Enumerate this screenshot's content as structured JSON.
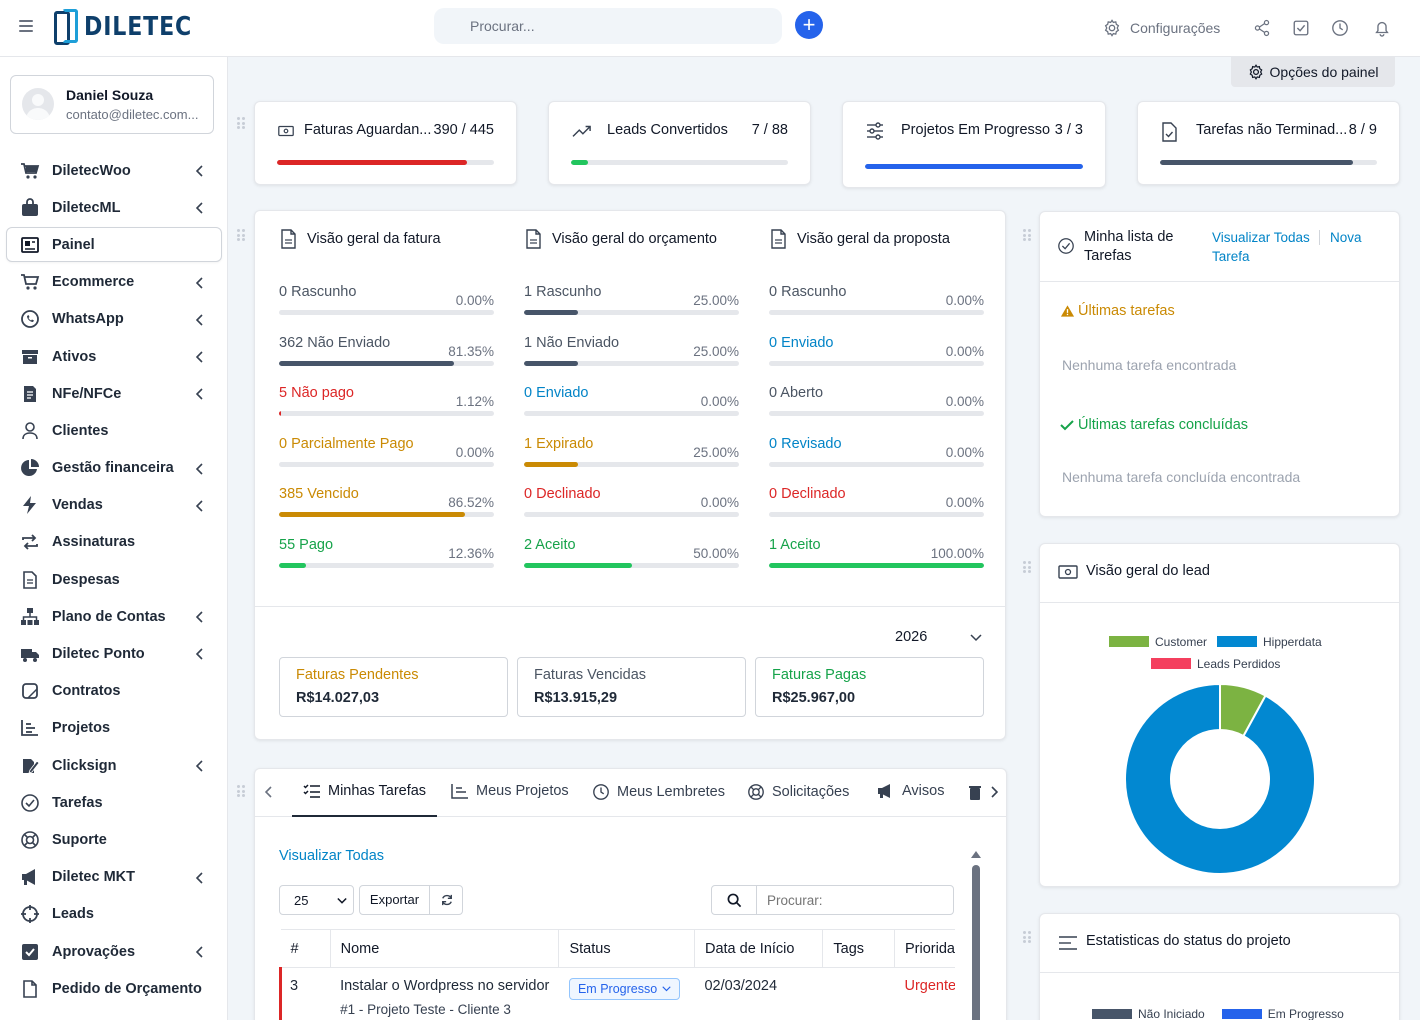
{
  "header": {
    "search_placeholder": "Procurar...",
    "settings_label": "Configurações",
    "logo_text": "DILETEC"
  },
  "profile": {
    "name": "Daniel Souza",
    "email": "contato@diletec.com..."
  },
  "sidebar": {
    "items": [
      {
        "label": "DiletecWoo",
        "icon": "cart-icon",
        "chevron": true
      },
      {
        "label": "DiletecML",
        "icon": "bag-icon",
        "chevron": true
      },
      {
        "label": "Painel",
        "icon": "dashboard-icon",
        "chevron": false,
        "active": true
      },
      {
        "label": "Ecommerce",
        "icon": "cart-plus-icon",
        "chevron": true
      },
      {
        "label": "WhatsApp",
        "icon": "whatsapp-icon",
        "chevron": true
      },
      {
        "label": "Ativos",
        "icon": "archive-icon",
        "chevron": true
      },
      {
        "label": "NFe/NFCe",
        "icon": "invoice-icon",
        "chevron": true
      },
      {
        "label": "Clientes",
        "icon": "user-icon",
        "chevron": false
      },
      {
        "label": "Gestão financeira",
        "icon": "pie-icon",
        "chevron": true
      },
      {
        "label": "Vendas",
        "icon": "bolt-icon",
        "chevron": true
      },
      {
        "label": "Assinaturas",
        "icon": "repeat-icon",
        "chevron": false
      },
      {
        "label": "Despesas",
        "icon": "file-icon",
        "chevron": false
      },
      {
        "label": "Plano de Contas",
        "icon": "sitemap-icon",
        "chevron": true
      },
      {
        "label": "Diletec Ponto",
        "icon": "clock-truck-icon",
        "chevron": true
      },
      {
        "label": "Contratos",
        "icon": "contract-icon",
        "chevron": false
      },
      {
        "label": "Projetos",
        "icon": "chart-bar-icon",
        "chevron": false
      },
      {
        "label": "Clicksign",
        "icon": "signature-icon",
        "chevron": true
      },
      {
        "label": "Tarefas",
        "icon": "check-circle-icon",
        "chevron": false
      },
      {
        "label": "Suporte",
        "icon": "lifebuoy-icon",
        "chevron": false
      },
      {
        "label": "Diletec MKT",
        "icon": "megaphone-icon",
        "chevron": true
      },
      {
        "label": "Leads",
        "icon": "crosshair-icon",
        "chevron": false
      },
      {
        "label": "Aprovações",
        "icon": "checkbox-icon",
        "chevron": true
      },
      {
        "label": "Pedido de Orçamento",
        "icon": "document-icon",
        "chevron": false
      }
    ]
  },
  "panel_options": "Opções do painel",
  "stats": [
    {
      "title": "Faturas Aguardan...",
      "value": "390 / 445",
      "progress": 0.876,
      "color": "#dc2626"
    },
    {
      "title": "Leads Convertidos",
      "value": "7 / 88",
      "progress": 0.08,
      "color": "#22c55e"
    },
    {
      "title": "Projetos Em Progresso",
      "value": "3 / 3",
      "progress": 1.0,
      "color": "#2563eb"
    },
    {
      "title": "Tarefas não Terminad...",
      "value": "8 / 9",
      "progress": 0.889,
      "color": "#475569"
    }
  ],
  "overview": {
    "invoice": {
      "title": "Visão geral da fatura",
      "rows": [
        {
          "label": "0 Rascunho",
          "pct": "0.00%",
          "value": 0,
          "color": "#4b5563",
          "text_color": "#4b5563"
        },
        {
          "label": "362 Não Enviado",
          "pct": "81.35%",
          "value": 0.8135,
          "color": "#475569",
          "text_color": "#4b5563"
        },
        {
          "label": "5 Não pago",
          "pct": "1.12%",
          "value": 0.0112,
          "color": "#dc2626",
          "text_color": "#dc2626"
        },
        {
          "label": "0 Parcialmente Pago",
          "pct": "0.00%",
          "value": 0,
          "color": "#ca8a04",
          "text_color": "#ca8a04"
        },
        {
          "label": "385 Vencido",
          "pct": "86.52%",
          "value": 0.8652,
          "color": "#ca8a04",
          "text_color": "#ca8a04"
        },
        {
          "label": "55 Pago",
          "pct": "12.36%",
          "value": 0.1236,
          "color": "#22c55e",
          "text_color": "#16a34a"
        }
      ]
    },
    "estimate": {
      "title": "Visão geral do orçamento",
      "rows": [
        {
          "label": "1 Rascunho",
          "pct": "25.00%",
          "value": 0.25,
          "color": "#475569",
          "text_color": "#4b5563"
        },
        {
          "label": "1 Não Enviado",
          "pct": "25.00%",
          "value": 0.25,
          "color": "#475569",
          "text_color": "#4b5563"
        },
        {
          "label": "0 Enviado",
          "pct": "0.00%",
          "value": 0,
          "color": "#2563eb",
          "text_color": "#0284c7"
        },
        {
          "label": "1 Expirado",
          "pct": "25.00%",
          "value": 0.25,
          "color": "#ca8a04",
          "text_color": "#ca8a04"
        },
        {
          "label": "0 Declinado",
          "pct": "0.00%",
          "value": 0,
          "color": "#dc2626",
          "text_color": "#dc2626"
        },
        {
          "label": "2 Aceito",
          "pct": "50.00%",
          "value": 0.5,
          "color": "#22c55e",
          "text_color": "#16a34a"
        }
      ]
    },
    "proposal": {
      "title": "Visão geral da proposta",
      "rows": [
        {
          "label": "0 Rascunho",
          "pct": "0.00%",
          "value": 0,
          "color": "#475569",
          "text_color": "#4b5563"
        },
        {
          "label": "0 Enviado",
          "pct": "0.00%",
          "value": 0,
          "color": "#2563eb",
          "text_color": "#0284c7"
        },
        {
          "label": "0 Aberto",
          "pct": "0.00%",
          "value": 0,
          "color": "#475569",
          "text_color": "#4b5563"
        },
        {
          "label": "0 Revisado",
          "pct": "0.00%",
          "value": 0,
          "color": "#2563eb",
          "text_color": "#0284c7"
        },
        {
          "label": "0 Declinado",
          "pct": "0.00%",
          "value": 0,
          "color": "#dc2626",
          "text_color": "#dc2626"
        },
        {
          "label": "1 Aceito",
          "pct": "100.00%",
          "value": 1.0,
          "color": "#22c55e",
          "text_color": "#16a34a"
        }
      ]
    },
    "year": "2026",
    "summary": [
      {
        "title": "Faturas Pendentes",
        "value": "R$14.027,03",
        "color": "#ca8a04"
      },
      {
        "title": "Faturas Vencidas",
        "value": "R$13.915,29",
        "color": "#4b5563"
      },
      {
        "title": "Faturas Pagas",
        "value": "R$25.967,00",
        "color": "#16a34a"
      }
    ]
  },
  "todo": {
    "title_line1": "Minha lista de",
    "title_line2": "Tarefas",
    "view_all": "Visualizar Todas",
    "new_line1": "Nova",
    "new_line2": "Tarefa",
    "latest": "Últimas tarefas",
    "none": "Nenhuma tarefa encontrada",
    "latest_done": "Últimas tarefas concluídas",
    "none_done": "Nenhuma tarefa concluída encontrada"
  },
  "lead": {
    "title": "Visão geral do lead",
    "chart_data": {
      "type": "pie",
      "labels": [
        "Customer",
        "Hipperdata",
        "Leads Perdidos"
      ],
      "values": [
        7,
        81,
        0
      ],
      "colors": [
        "#7cb342",
        "#0288d1",
        "#f43f5e"
      ],
      "legend": "top"
    }
  },
  "project_stats": {
    "title": "Estatisticas do status do projeto",
    "legend": [
      {
        "label": "Não Iniciado",
        "color": "#475569"
      },
      {
        "label": "Em Progresso",
        "color": "#2563eb"
      }
    ]
  },
  "tabs": {
    "items": [
      {
        "label": "Minhas Tarefas",
        "icon": "tasks-icon"
      },
      {
        "label": "Meus Projetos",
        "icon": "chart-bar-icon"
      },
      {
        "label": "Meus Lembretes",
        "icon": "clock-icon"
      },
      {
        "label": "Solicitações",
        "icon": "lifebuoy-icon"
      },
      {
        "label": "Avisos",
        "icon": "megaphone-icon"
      }
    ],
    "view_all": "Visualizar Todas",
    "page_size": "25",
    "export": "Exportar",
    "search_placeholder": "Procurar:",
    "columns": [
      "#",
      "Nome",
      "Status",
      "Data de Início",
      "Tags",
      "Priorida"
    ],
    "rows": [
      {
        "id": "3",
        "name": "Instalar o Wordpress no servidor",
        "sub": "#1 - Projeto Teste - Cliente 3",
        "status": "Em Progresso",
        "start": "02/03/2024",
        "tags": "",
        "priority": "Urgente"
      }
    ]
  }
}
